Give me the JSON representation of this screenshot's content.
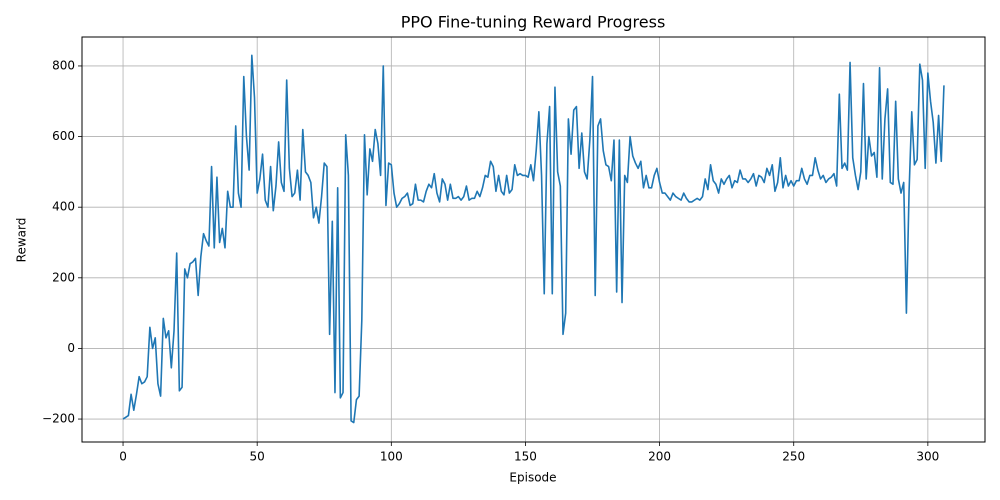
{
  "chart_data": {
    "type": "line",
    "title": "PPO Fine-tuning Reward Progress",
    "xlabel": "Episode",
    "ylabel": "Reward",
    "color": "#1f77b4",
    "grid": true,
    "xlim": [
      -15.3,
      321.3
    ],
    "ylim": [
      -265,
      882
    ],
    "xticks": [
      0,
      50,
      100,
      150,
      200,
      250,
      300
    ],
    "yticks": [
      {
        "value": -200,
        "label": "−200"
      },
      0,
      200,
      400,
      600,
      800
    ],
    "x": [
      0,
      1,
      2,
      3,
      4,
      5,
      6,
      7,
      8,
      9,
      10,
      11,
      12,
      13,
      14,
      15,
      16,
      17,
      18,
      19,
      20,
      21,
      22,
      23,
      24,
      25,
      26,
      27,
      28,
      29,
      30,
      31,
      32,
      33,
      34,
      35,
      36,
      37,
      38,
      39,
      40,
      41,
      42,
      43,
      44,
      45,
      46,
      47,
      48,
      49,
      50,
      51,
      52,
      53,
      54,
      55,
      56,
      57,
      58,
      59,
      60,
      61,
      62,
      63,
      64,
      65,
      66,
      67,
      68,
      69,
      70,
      71,
      72,
      73,
      74,
      75,
      76,
      77,
      78,
      79,
      80,
      81,
      82,
      83,
      84,
      85,
      86,
      87,
      88,
      89,
      90,
      91,
      92,
      93,
      94,
      95,
      96,
      97,
      98,
      99,
      100,
      101,
      102,
      103,
      104,
      105,
      106,
      107,
      108,
      109,
      110,
      111,
      112,
      113,
      114,
      115,
      116,
      117,
      118,
      119,
      120,
      121,
      122,
      123,
      124,
      125,
      126,
      127,
      128,
      129,
      130,
      131,
      132,
      133,
      134,
      135,
      136,
      137,
      138,
      139,
      140,
      141,
      142,
      143,
      144,
      145,
      146,
      147,
      148,
      149,
      150,
      151,
      152,
      153,
      154,
      155,
      156,
      157,
      158,
      159,
      160,
      161,
      162,
      163,
      164,
      165,
      166,
      167,
      168,
      169,
      170,
      171,
      172,
      173,
      174,
      175,
      176,
      177,
      178,
      179,
      180,
      181,
      182,
      183,
      184,
      185,
      186,
      187,
      188,
      189,
      190,
      191,
      192,
      193,
      194,
      195,
      196,
      197,
      198,
      199,
      200,
      201,
      202,
      203,
      204,
      205,
      206,
      207,
      208,
      209,
      210,
      211,
      212,
      213,
      214,
      215,
      216,
      217,
      218,
      219,
      220,
      221,
      222,
      223,
      224,
      225,
      226,
      227,
      228,
      229,
      230,
      231,
      232,
      233,
      234,
      235,
      236,
      237,
      238,
      239,
      240,
      241,
      242,
      243,
      244,
      245,
      246,
      247,
      248,
      249,
      250,
      251,
      252,
      253,
      254,
      255,
      256,
      257,
      258,
      259,
      260,
      261,
      262,
      263,
      264,
      265,
      266,
      267,
      268,
      269,
      270,
      271,
      272,
      273,
      274,
      275,
      276,
      277,
      278,
      279,
      280,
      281,
      282,
      283,
      284,
      285,
      286,
      287,
      288,
      289,
      290,
      291,
      292,
      293,
      294,
      295,
      296,
      297,
      298,
      299,
      300,
      301,
      302,
      303,
      304,
      305,
      306
    ],
    "values": [
      -200,
      -195,
      -190,
      -130,
      -175,
      -130,
      -80,
      -100,
      -95,
      -80,
      60,
      0,
      30,
      -100,
      -135,
      85,
      30,
      50,
      -55,
      50,
      270,
      -120,
      -110,
      225,
      200,
      240,
      245,
      255,
      150,
      260,
      325,
      305,
      290,
      515,
      285,
      485,
      300,
      340,
      285,
      445,
      400,
      400,
      630,
      440,
      400,
      770,
      600,
      505,
      830,
      710,
      440,
      480,
      550,
      420,
      400,
      515,
      390,
      460,
      585,
      470,
      445,
      760,
      510,
      430,
      440,
      505,
      420,
      620,
      500,
      490,
      470,
      370,
      400,
      355,
      430,
      525,
      515,
      40,
      360,
      -125,
      455,
      -140,
      -125,
      605,
      490,
      -205,
      -210,
      -145,
      -135,
      80,
      605,
      435,
      565,
      530,
      620,
      580,
      490,
      800,
      405,
      525,
      520,
      440,
      400,
      410,
      425,
      430,
      440,
      405,
      410,
      465,
      420,
      420,
      415,
      445,
      465,
      455,
      495,
      440,
      415,
      480,
      465,
      420,
      465,
      425,
      425,
      430,
      420,
      430,
      460,
      420,
      425,
      425,
      445,
      430,
      455,
      490,
      485,
      530,
      515,
      445,
      490,
      445,
      435,
      490,
      440,
      450,
      520,
      490,
      495,
      490,
      490,
      485,
      520,
      475,
      560,
      670,
      490,
      155,
      580,
      685,
      155,
      740,
      500,
      460,
      40,
      100,
      650,
      550,
      675,
      685,
      510,
      610,
      500,
      480,
      590,
      770,
      150,
      630,
      650,
      560,
      520,
      515,
      475,
      590,
      160,
      590,
      130,
      490,
      470,
      600,
      545,
      525,
      510,
      530,
      455,
      490,
      455,
      455,
      490,
      510,
      470,
      440,
      440,
      430,
      420,
      440,
      430,
      425,
      420,
      440,
      425,
      415,
      415,
      420,
      425,
      420,
      430,
      480,
      450,
      520,
      475,
      465,
      440,
      480,
      465,
      480,
      490,
      455,
      475,
      470,
      505,
      480,
      480,
      470,
      480,
      495,
      460,
      490,
      485,
      470,
      510,
      490,
      520,
      445,
      470,
      540,
      455,
      490,
      460,
      475,
      460,
      475,
      475,
      510,
      480,
      465,
      490,
      490,
      540,
      505,
      480,
      490,
      470,
      480,
      485,
      495,
      460,
      720,
      510,
      525,
      505,
      810,
      540,
      490,
      450,
      500,
      750,
      480,
      600,
      545,
      555,
      485,
      795,
      480,
      650,
      735,
      470,
      465,
      700,
      480,
      440,
      470,
      100,
      445,
      670,
      520,
      535,
      805,
      760,
      510,
      780,
      700,
      640,
      525,
      660,
      530,
      745
    ]
  }
}
